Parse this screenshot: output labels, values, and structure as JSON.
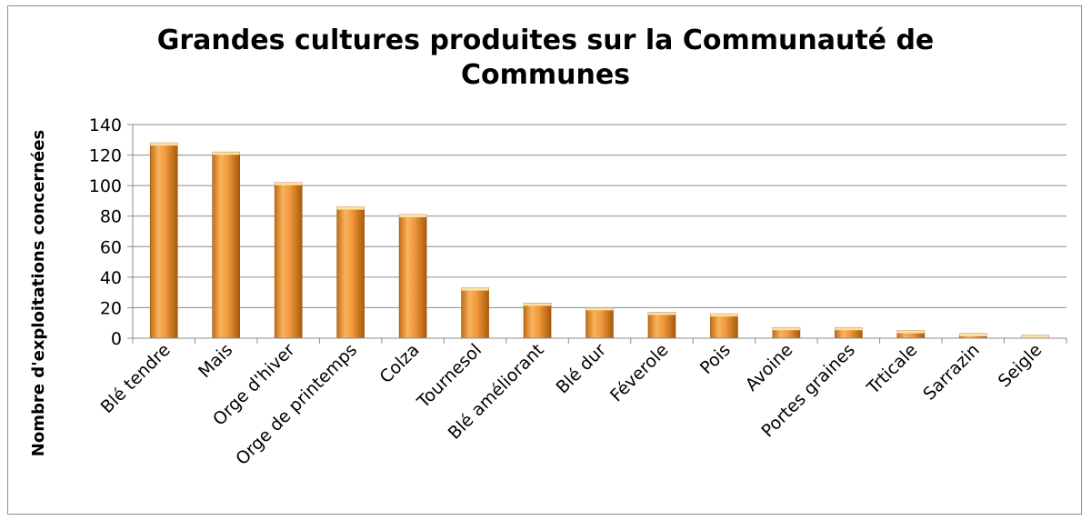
{
  "chart_data": {
    "type": "bar",
    "title_line1": "Grandes cultures produites sur la Communauté de",
    "title_line2": "Communes",
    "xlabel": "",
    "ylabel": "Nombre d'exploitations concernées",
    "ylim": [
      0,
      140
    ],
    "yticks": [
      0,
      20,
      40,
      60,
      80,
      100,
      120,
      140
    ],
    "grid": true,
    "legend": "none",
    "categories": [
      "Blé tendre",
      "Mais",
      "Orge d'hiver",
      "Orge de printemps",
      "Colza",
      "Tournesol",
      "Blé améliorant",
      "Blé dur",
      "Féverole",
      "Pois",
      "Avoine",
      "Portes graines",
      "Trticale",
      "Sarrazin",
      "Seigle"
    ],
    "values": [
      128,
      122,
      102,
      86,
      81,
      33,
      23,
      20,
      17,
      16,
      7,
      7,
      5,
      3,
      2
    ],
    "colors": {
      "bar_light": "#f8c77a",
      "bar_mid": "#ef9a3a",
      "bar_dark": "#b9650f",
      "bar_top": "#fbe0a8",
      "gridline": "#8c8c8c",
      "axis": "#8c8c8c"
    }
  }
}
